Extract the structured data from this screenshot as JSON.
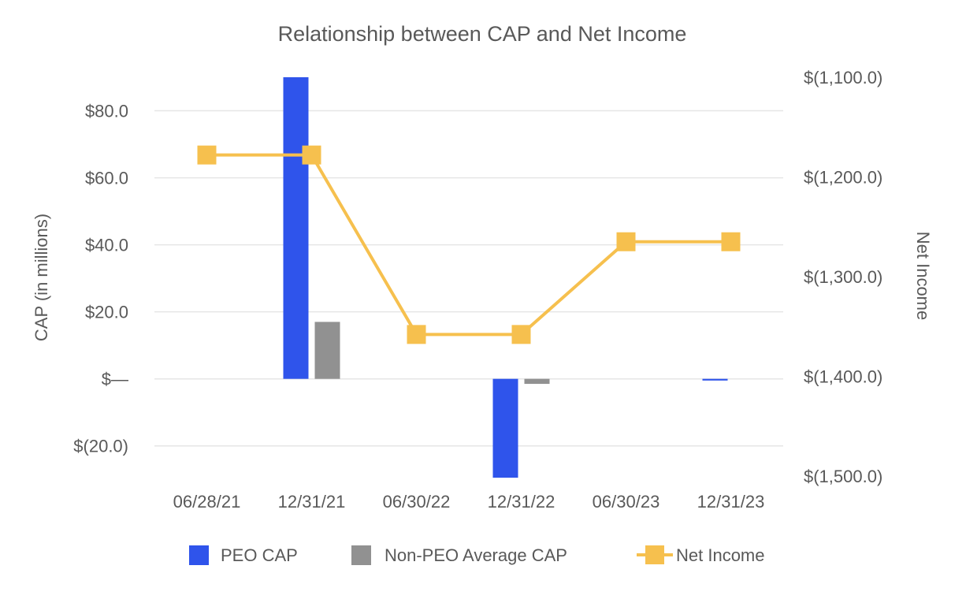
{
  "chart_data": {
    "type": "bar+line",
    "title": "Relationship between CAP and Net Income",
    "categories": [
      "06/28/21",
      "12/31/21",
      "06/30/22",
      "12/31/22",
      "06/30/23",
      "12/31/23"
    ],
    "left_axis": {
      "label": "CAP (in millions)",
      "ylim": [
        -29,
        90
      ],
      "ticks": [
        80,
        60,
        40,
        20,
        0,
        -20
      ],
      "tick_labels": [
        "$80.0",
        "$60.0",
        "$40.0",
        "$20.0",
        "$—",
        "$(20.0)"
      ]
    },
    "right_axis": {
      "label": "Net Income",
      "ylim": [
        -1500,
        -1100
      ],
      "ticks": [
        -1100,
        -1200,
        -1300,
        -1400,
        -1500
      ],
      "tick_labels": [
        "$(1,100.0)",
        "$(1,200.0)",
        "$(1,300.0)",
        "$(1,400.0)",
        "$(1,500.0)"
      ]
    },
    "series": [
      {
        "name": "PEO CAP",
        "type": "bar",
        "axis": "left",
        "color": "#2f54eb",
        "values": [
          null,
          90.0,
          null,
          -29.5,
          null,
          -0.5
        ]
      },
      {
        "name": "Non-PEO Average CAP",
        "type": "bar",
        "axis": "left",
        "color": "#919191",
        "values": [
          null,
          17.0,
          null,
          -1.5,
          null,
          null
        ]
      },
      {
        "name": "Net Income",
        "type": "line",
        "axis": "right",
        "color": "#f6c04e",
        "values": [
          -1178,
          -1178,
          -1358,
          -1358,
          -1265,
          -1265
        ]
      }
    ],
    "legend": {
      "position": "bottom",
      "items": [
        "PEO CAP",
        "Non-PEO Average CAP",
        "Net Income"
      ]
    },
    "grid": true
  }
}
